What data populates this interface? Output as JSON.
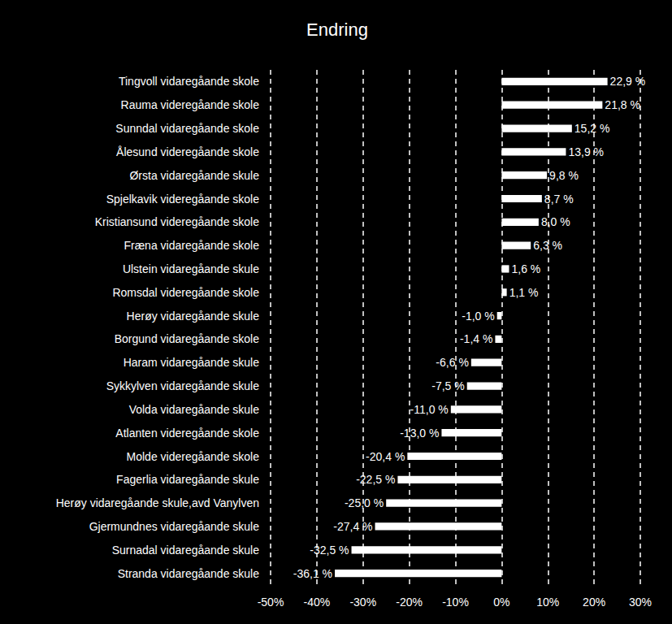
{
  "chart_data": {
    "type": "bar",
    "title": "Endring",
    "orientation": "horizontal",
    "categories": [
      "Tingvoll vidaregåande skole",
      "Rauma videregåande skole",
      "Sunndal vidaregåande skole",
      "Ålesund videregåande skole",
      "Ørsta vidaregåande skule",
      "Spjelkavik videregåande skole",
      "Kristiansund videregåande skole",
      "Fræna vidaregåande skole",
      "Ulstein vidaregåande skule",
      "Romsdal videregåande skole",
      "Herøy vidaregåande skule",
      "Borgund vidaregåande skole",
      "Haram vidaregåande skule",
      "Sykkylven vidaregåande skule",
      "Volda vidaregåande skule",
      "Atlanten videregåande skole",
      "Molde videregåande skole",
      "Fagerlia vidaregåande skule",
      "Herøy vidaregåande skule,avd Vanylven",
      "Gjermundnes vidaregåande skule",
      "Surnadal vidaregåande skule",
      "Stranda vidaregåande skule"
    ],
    "values": [
      22.9,
      21.8,
      15.2,
      13.9,
      9.8,
      8.7,
      8.0,
      6.3,
      1.6,
      1.1,
      -1.0,
      -1.4,
      -6.6,
      -7.5,
      -11.0,
      -13.0,
      -20.4,
      -22.5,
      -25.0,
      -27.4,
      -32.5,
      -36.1
    ],
    "value_labels": [
      "22,9 %",
      "21,8 %",
      "15,2 %",
      "13,9 %",
      "9,8 %",
      "8,7 %",
      "8,0 %",
      "6,3 %",
      "1,6 %",
      "1,1 %",
      "-1,0 %",
      "-1,4 %",
      "-6,6 %",
      "-7,5 %",
      "-11,0 %",
      "-13,0 %",
      "-20,4 %",
      "-22,5 %",
      "-25,0 %",
      "-27,4 %",
      "-32,5 %",
      "-36,1 %"
    ],
    "color": "#ffffff",
    "data_labels": true,
    "grid": true,
    "xlim": [
      -50,
      30
    ],
    "xticks": [
      {
        "value": -50,
        "label": "-50%"
      },
      {
        "value": -40,
        "label": "-40%"
      },
      {
        "value": -30,
        "label": "-30%"
      },
      {
        "value": -20,
        "label": "-20%"
      },
      {
        "value": -10,
        "label": "-10%"
      },
      {
        "value": 0,
        "label": "0%"
      },
      {
        "value": 10,
        "label": "10%"
      },
      {
        "value": 20,
        "label": "20%"
      },
      {
        "value": 30,
        "label": "30%"
      }
    ]
  }
}
